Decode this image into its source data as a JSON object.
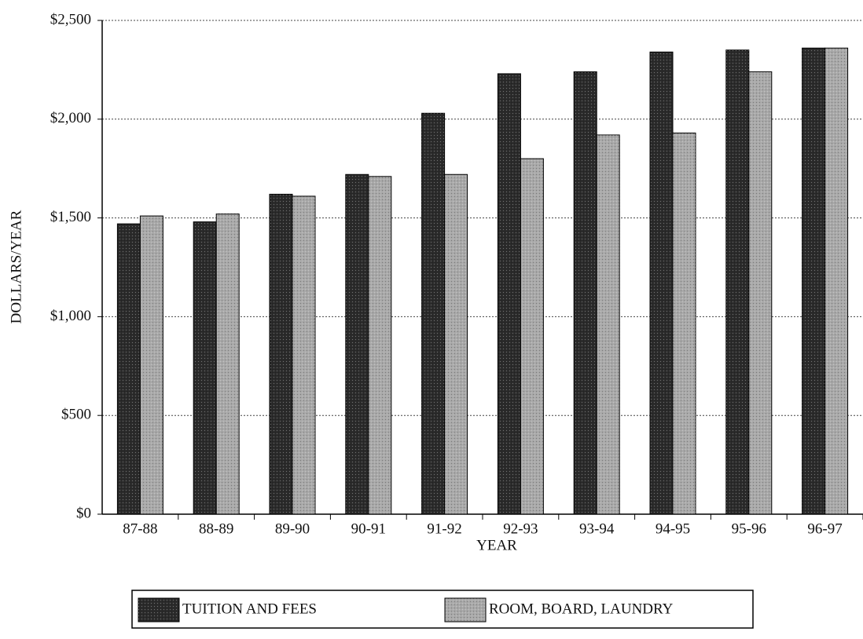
{
  "chart_data": {
    "type": "bar",
    "categories": [
      "87-88",
      "88-89",
      "89-90",
      "90-91",
      "91-92",
      "92-93",
      "93-94",
      "94-95",
      "95-96",
      "96-97"
    ],
    "series": [
      {
        "name": "TUITION AND FEES",
        "color": "#2b2b2b",
        "values": [
          1470,
          1480,
          1620,
          1720,
          2030,
          2230,
          2240,
          2340,
          2350,
          2360
        ]
      },
      {
        "name": "ROOM, BOARD, LAUNDRY",
        "color": "#a9a9a9",
        "values": [
          1510,
          1520,
          1610,
          1710,
          1720,
          1800,
          1920,
          1930,
          2240,
          2360
        ]
      }
    ],
    "xlabel": "YEAR",
    "ylabel": "DOLLARS/YEAR",
    "ylim": [
      0,
      2500
    ],
    "yticks": [
      {
        "value": 0,
        "label": "$0"
      },
      {
        "value": 500,
        "label": "$500"
      },
      {
        "value": 1000,
        "label": "$1,000"
      },
      {
        "value": 1500,
        "label": "$1,500"
      },
      {
        "value": 2000,
        "label": "$2,000"
      },
      {
        "value": 2500,
        "label": "$2,500"
      }
    ],
    "grid": true,
    "legend": "bottom"
  }
}
